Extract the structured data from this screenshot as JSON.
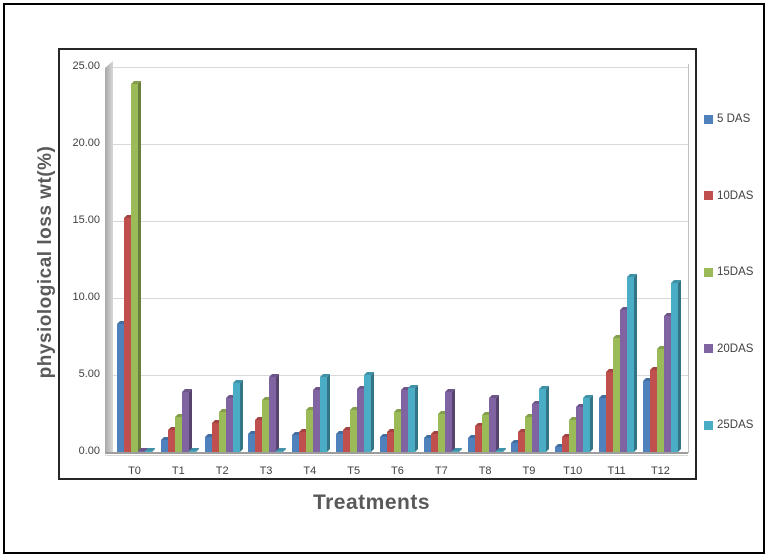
{
  "chart_data": {
    "type": "bar",
    "title": "",
    "xlabel": "Treatments",
    "ylabel": "physiological loss wt(%)",
    "ylim": [
      0,
      25
    ],
    "ytick_step": 5,
    "ytick_format_decimals": 2,
    "grid": true,
    "legend_position": "right-outside",
    "style": "3d-clustered",
    "categories": [
      "T0",
      "T1",
      "T2",
      "T3",
      "T4",
      "T5",
      "T6",
      "T7",
      "T8",
      "T9",
      "T10",
      "T11",
      "T12"
    ],
    "series": [
      {
        "name": "5 DAS",
        "color": "#4f81bd",
        "side_color": "#365881",
        "cap_color": "#436ea1",
        "values": [
          8.3,
          0.8,
          1.0,
          1.2,
          1.1,
          1.2,
          1.0,
          0.9,
          0.9,
          0.6,
          0.3,
          3.5,
          4.6
        ]
      },
      {
        "name": "10DAS",
        "color": "#c0504d",
        "side_color": "#833735",
        "cap_color": "#a44442",
        "values": [
          15.2,
          1.4,
          1.9,
          2.1,
          1.3,
          1.4,
          1.3,
          1.2,
          1.7,
          1.3,
          1.0,
          5.2,
          5.3
        ]
      },
      {
        "name": "15DAS",
        "color": "#9bbb59",
        "side_color": "#697f3c",
        "cap_color": "#849f4c",
        "values": [
          23.9,
          2.3,
          2.6,
          3.4,
          2.7,
          2.7,
          2.6,
          2.5,
          2.4,
          2.3,
          2.1,
          7.4,
          6.7
        ]
      },
      {
        "name": "20DAS",
        "color": "#8064a2",
        "side_color": "#57446e",
        "cap_color": "#6d558a",
        "values": [
          0.05,
          3.9,
          3.5,
          4.9,
          4.0,
          4.1,
          4.0,
          3.9,
          3.5,
          3.1,
          2.9,
          9.2,
          8.8
        ]
      },
      {
        "name": "25DAS",
        "color": "#4bacc6",
        "side_color": "#337587",
        "cap_color": "#4092a8",
        "values": [
          0.05,
          0.05,
          4.5,
          0.05,
          4.9,
          5.0,
          4.15,
          0.05,
          0.05,
          4.1,
          3.5,
          11.35,
          11.0
        ]
      }
    ]
  },
  "colors": {
    "axis_title": "#595959",
    "tick_label": "#404040",
    "gridline": "#d9d9d9",
    "border": "#262626"
  }
}
